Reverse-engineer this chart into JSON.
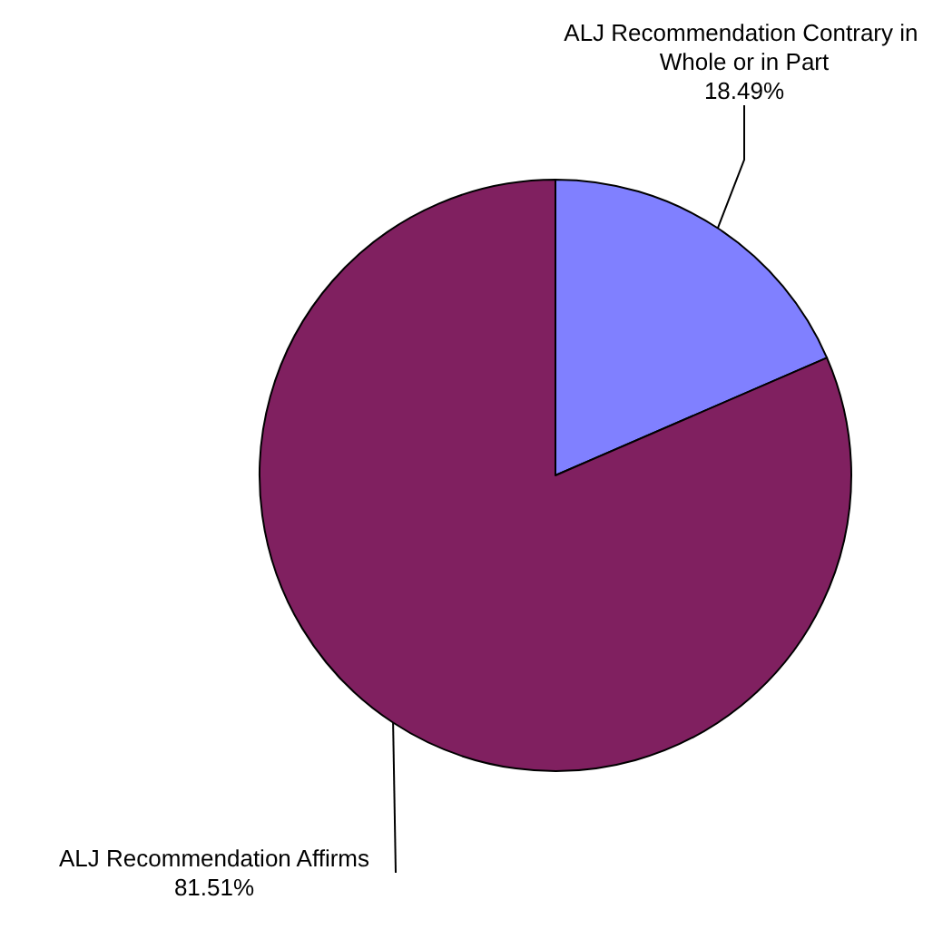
{
  "chart_data": {
    "type": "pie",
    "categories": [
      "ALJ Recommendation Contrary in Whole or in Part",
      "ALJ Recommendation Affirms"
    ],
    "values": [
      18.49,
      81.51
    ],
    "colors": [
      "#8080ff",
      "#802060"
    ],
    "value_labels": [
      "18.49%",
      "81.51%"
    ]
  }
}
